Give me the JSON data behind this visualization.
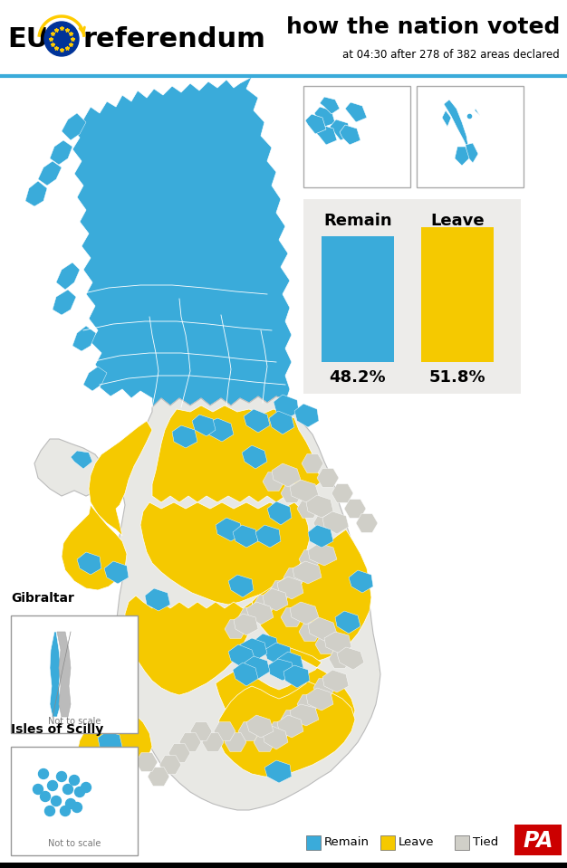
{
  "title_right": "how the nation voted",
  "subtitle": "at 04:30 after 278 of 382 areas declared",
  "remain_pct": 48.2,
  "leave_pct": 51.8,
  "remain_label": "Remain",
  "leave_label": "Leave",
  "remain_color": "#3AABDA",
  "leave_color": "#F5C900",
  "tied_color": "#D0CFC8",
  "bg_color": "#FFFFFF",
  "bar_bg": "#EDECEA",
  "header_line_color": "#3AABDA",
  "eu_circle_color": "#003399",
  "eu_star_color": "#FFCC00",
  "pa_bg_color": "#CC0000",
  "legend_items": [
    "Remain",
    "Leave",
    "Tied"
  ],
  "legend_colors": [
    "#3AABDA",
    "#F5C900",
    "#D0CFC8"
  ],
  "gibraltar_label": "Gibraltar",
  "scilly_label": "Isles of Scilly",
  "not_to_scale": "Not to scale",
  "map_sea_color": "#FFFFFF",
  "undeclared_color": "#E8E8E4"
}
